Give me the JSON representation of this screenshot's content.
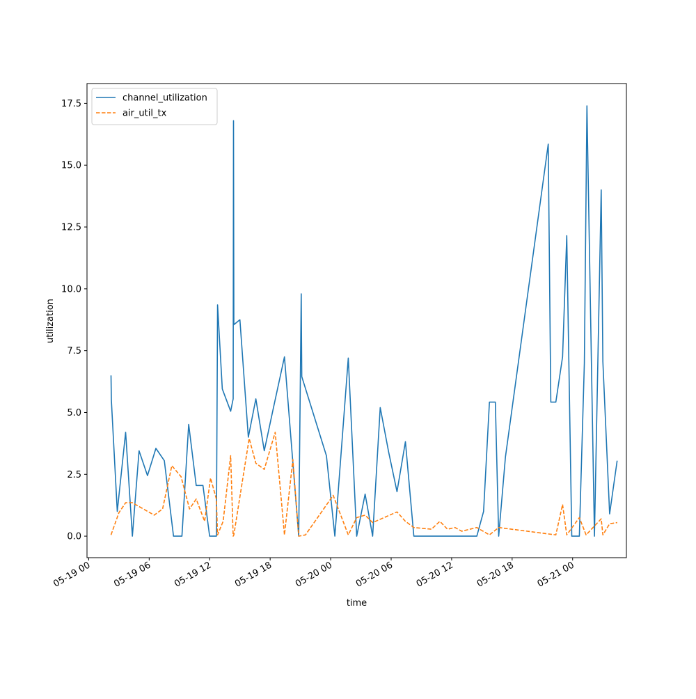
{
  "chart_data": {
    "type": "line",
    "title": "",
    "xlabel": "time",
    "ylabel": "utilization",
    "xlim": [
      "2024-05-18T23:50",
      "2024-05-21T05:20"
    ],
    "ylim": [
      -0.87,
      18.3
    ],
    "x_ticks": [
      {
        "value": "2024-05-19T00:00",
        "label": "05-19 00"
      },
      {
        "value": "2024-05-19T06:00",
        "label": "05-19 06"
      },
      {
        "value": "2024-05-19T12:00",
        "label": "05-19 12"
      },
      {
        "value": "2024-05-19T18:00",
        "label": "05-19 18"
      },
      {
        "value": "2024-05-20T00:00",
        "label": "05-20 00"
      },
      {
        "value": "2024-05-20T06:00",
        "label": "05-20 06"
      },
      {
        "value": "2024-05-20T12:00",
        "label": "05-20 12"
      },
      {
        "value": "2024-05-20T18:00",
        "label": "05-20 18"
      },
      {
        "value": "2024-05-21T00:00",
        "label": "05-21 00"
      }
    ],
    "y_ticks": [
      {
        "value": 0.0,
        "label": "0.0"
      },
      {
        "value": 2.5,
        "label": "2.5"
      },
      {
        "value": 5.0,
        "label": "5.0"
      },
      {
        "value": 7.5,
        "label": "7.5"
      },
      {
        "value": 10.0,
        "label": "10.0"
      },
      {
        "value": 12.5,
        "label": "12.5"
      },
      {
        "value": 15.0,
        "label": "15.0"
      },
      {
        "value": 17.5,
        "label": "17.5"
      }
    ],
    "grid": false,
    "legend_position": "top-left",
    "series": [
      {
        "name": "channel_utilization",
        "color": "#1f77b4",
        "style": "solid",
        "points": [
          [
            "2024-05-19T02:13",
            6.5
          ],
          [
            "2024-05-19T02:15",
            5.5
          ],
          [
            "2024-05-19T02:50",
            1.0
          ],
          [
            "2024-05-19T03:40",
            4.2
          ],
          [
            "2024-05-19T04:20",
            0.0
          ],
          [
            "2024-05-19T05:00",
            3.45
          ],
          [
            "2024-05-19T05:50",
            2.45
          ],
          [
            "2024-05-19T06:40",
            3.55
          ],
          [
            "2024-05-19T07:30",
            3.05
          ],
          [
            "2024-05-19T08:25",
            0.0
          ],
          [
            "2024-05-19T09:15",
            0.0
          ],
          [
            "2024-05-19T09:55",
            4.52
          ],
          [
            "2024-05-19T10:40",
            2.05
          ],
          [
            "2024-05-19T11:20",
            2.05
          ],
          [
            "2024-05-19T12:00",
            0.0
          ],
          [
            "2024-05-19T12:40",
            0.0
          ],
          [
            "2024-05-19T12:47",
            9.35
          ],
          [
            "2024-05-19T13:15",
            5.95
          ],
          [
            "2024-05-19T14:05",
            5.05
          ],
          [
            "2024-05-19T14:20",
            5.55
          ],
          [
            "2024-05-19T14:22",
            16.8
          ],
          [
            "2024-05-19T14:24",
            8.55
          ],
          [
            "2024-05-19T15:00",
            8.75
          ],
          [
            "2024-05-19T15:50",
            4.0
          ],
          [
            "2024-05-19T16:35",
            5.55
          ],
          [
            "2024-05-19T17:25",
            3.45
          ],
          [
            "2024-05-19T18:15",
            5.05
          ],
          [
            "2024-05-19T19:25",
            7.25
          ],
          [
            "2024-05-19T20:50",
            0.0
          ],
          [
            "2024-05-19T21:05",
            9.8
          ],
          [
            "2024-05-19T21:08",
            6.45
          ],
          [
            "2024-05-19T23:35",
            3.25
          ],
          [
            "2024-05-20T00:25",
            0.0
          ],
          [
            "2024-05-20T01:45",
            7.2
          ],
          [
            "2024-05-20T02:35",
            0.0
          ],
          [
            "2024-05-20T03:25",
            1.7
          ],
          [
            "2024-05-20T04:10",
            0.0
          ],
          [
            "2024-05-20T04:55",
            5.2
          ],
          [
            "2024-05-20T05:45",
            3.4
          ],
          [
            "2024-05-20T06:35",
            1.8
          ],
          [
            "2024-05-20T07:25",
            3.82
          ],
          [
            "2024-05-20T08:15",
            0.0
          ],
          [
            "2024-05-20T14:30",
            0.0
          ],
          [
            "2024-05-20T15:10",
            1.0
          ],
          [
            "2024-05-20T15:45",
            5.42
          ],
          [
            "2024-05-20T16:20",
            5.42
          ],
          [
            "2024-05-20T16:40",
            0.0
          ],
          [
            "2024-05-20T17:20",
            3.2
          ],
          [
            "2024-05-20T21:35",
            15.85
          ],
          [
            "2024-05-20T21:50",
            5.42
          ],
          [
            "2024-05-20T22:20",
            5.42
          ],
          [
            "2024-05-20T23:00",
            7.25
          ],
          [
            "2024-05-20T23:25",
            12.15
          ],
          [
            "2024-05-20T23:55",
            0.0
          ],
          [
            "2024-05-21T00:40",
            0.0
          ],
          [
            "2024-05-21T01:10",
            7.0
          ],
          [
            "2024-05-21T01:25",
            17.4
          ],
          [
            "2024-05-21T02:10",
            0.0
          ],
          [
            "2024-05-21T02:50",
            14.0
          ],
          [
            "2024-05-21T03:00",
            7.05
          ],
          [
            "2024-05-21T03:40",
            0.9
          ],
          [
            "2024-05-21T04:25",
            3.05
          ]
        ]
      },
      {
        "name": "air_util_tx",
        "color": "#ff7f0e",
        "style": "dashed",
        "points": [
          [
            "2024-05-19T02:13",
            0.05
          ],
          [
            "2024-05-19T03:00",
            0.95
          ],
          [
            "2024-05-19T03:40",
            1.35
          ],
          [
            "2024-05-19T04:20",
            1.35
          ],
          [
            "2024-05-19T06:30",
            0.85
          ],
          [
            "2024-05-19T07:20",
            1.1
          ],
          [
            "2024-05-19T08:15",
            2.85
          ],
          [
            "2024-05-19T09:10",
            2.4
          ],
          [
            "2024-05-19T10:00",
            1.1
          ],
          [
            "2024-05-19T10:40",
            1.5
          ],
          [
            "2024-05-19T11:30",
            0.6
          ],
          [
            "2024-05-19T12:05",
            2.35
          ],
          [
            "2024-05-19T12:40",
            1.5
          ],
          [
            "2024-05-19T12:47",
            0.05
          ],
          [
            "2024-05-19T13:20",
            0.6
          ],
          [
            "2024-05-19T14:05",
            3.25
          ],
          [
            "2024-05-19T14:20",
            0.0
          ],
          [
            "2024-05-19T14:24",
            0.05
          ],
          [
            "2024-05-19T15:55",
            3.95
          ],
          [
            "2024-05-19T16:35",
            2.95
          ],
          [
            "2024-05-19T17:25",
            2.7
          ],
          [
            "2024-05-19T18:30",
            4.2
          ],
          [
            "2024-05-19T19:25",
            0.05
          ],
          [
            "2024-05-19T20:15",
            3.1
          ],
          [
            "2024-05-19T20:50",
            0.0
          ],
          [
            "2024-05-19T21:30",
            0.05
          ],
          [
            "2024-05-20T00:15",
            1.65
          ],
          [
            "2024-05-20T01:45",
            0.05
          ],
          [
            "2024-05-20T02:35",
            0.75
          ],
          [
            "2024-05-20T03:25",
            0.85
          ],
          [
            "2024-05-20T04:10",
            0.55
          ],
          [
            "2024-05-20T06:35",
            0.98
          ],
          [
            "2024-05-20T07:25",
            0.6
          ],
          [
            "2024-05-20T08:15",
            0.35
          ],
          [
            "2024-05-20T10:00",
            0.28
          ],
          [
            "2024-05-20T10:50",
            0.6
          ],
          [
            "2024-05-20T11:35",
            0.28
          ],
          [
            "2024-05-20T12:20",
            0.35
          ],
          [
            "2024-05-20T13:00",
            0.2
          ],
          [
            "2024-05-20T14:30",
            0.35
          ],
          [
            "2024-05-20T15:45",
            0.05
          ],
          [
            "2024-05-20T16:40",
            0.35
          ],
          [
            "2024-05-20T22:20",
            0.05
          ],
          [
            "2024-05-20T23:00",
            1.28
          ],
          [
            "2024-05-20T23:25",
            0.05
          ],
          [
            "2024-05-21T00:40",
            0.75
          ],
          [
            "2024-05-21T01:20",
            0.05
          ],
          [
            "2024-05-21T02:50",
            0.7
          ],
          [
            "2024-05-21T03:00",
            0.05
          ],
          [
            "2024-05-21T03:40",
            0.5
          ],
          [
            "2024-05-21T04:25",
            0.55
          ]
        ]
      }
    ]
  }
}
